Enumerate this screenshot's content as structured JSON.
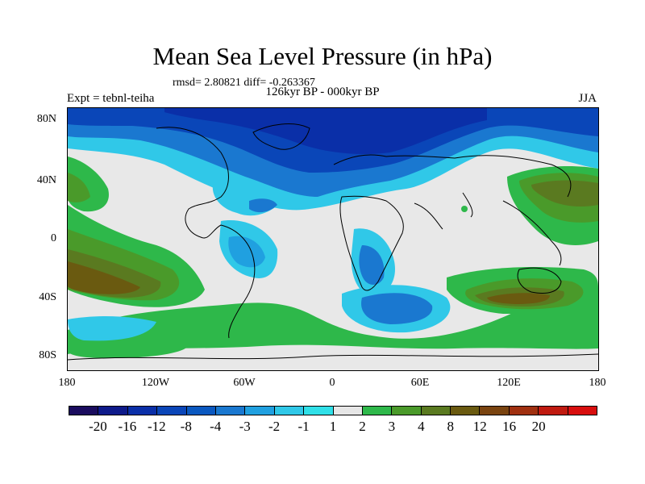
{
  "title": "Mean Sea Level Pressure (in hPa)",
  "stats": "rmsd= 2.80821  diff= -0.263367",
  "subtitle": "126kyr BP - 000kyr BP",
  "expt": "Expt = tebnl-teiha",
  "season": "JJA",
  "lat_labels": [
    "80N",
    "40N",
    "0",
    "40S",
    "80S"
  ],
  "lon_labels": [
    "180",
    "120W",
    "60W",
    "0",
    "60E",
    "120E",
    "180"
  ],
  "colorbar": {
    "colors": [
      "#1a0c5e",
      "#0e1a8a",
      "#0a2fa8",
      "#0a46b8",
      "#0a58c0",
      "#1a78d0",
      "#20a0e0",
      "#30c8e8",
      "#30e0e8",
      "#e6e6e6",
      "#2eb84a",
      "#4a9a2a",
      "#5a7a20",
      "#6a5a10",
      "#7a4410",
      "#a03010",
      "#c01a10",
      "#d80e0e"
    ],
    "labels": [
      "-20",
      "-16",
      "-12",
      "-8",
      "-4",
      "-3",
      "-2",
      "-1",
      "1",
      "2",
      "3",
      "4",
      "8",
      "12",
      "16",
      "20"
    ]
  }
}
